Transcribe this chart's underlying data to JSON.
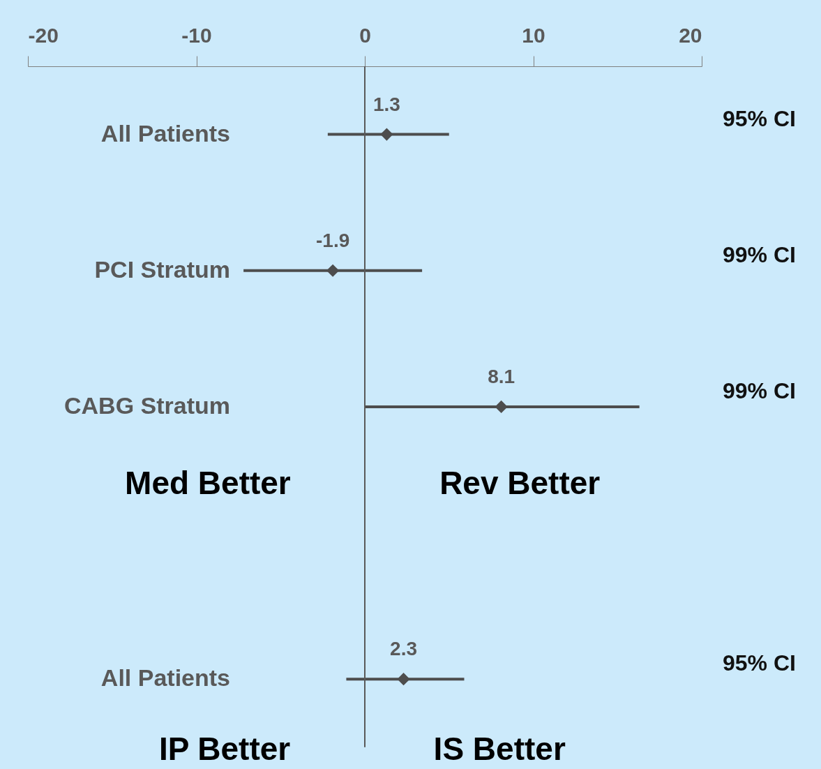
{
  "chart_data": {
    "type": "scatter",
    "orientation": "horizontal",
    "categories": [
      "All Patients",
      "PCI Stratum",
      "CABG Stratum",
      null,
      "All Patients"
    ],
    "y2_categories": [
      "95% CI",
      "99% CI",
      "99% CI",
      null,
      "95% CI"
    ],
    "values": [
      1.3,
      -1.9,
      8.1,
      null,
      2.3
    ],
    "errors": [
      [
        -2.2,
        5.0
      ],
      [
        -7.2,
        3.4
      ],
      [
        0.0,
        16.3
      ],
      null,
      [
        -1.1,
        5.9
      ]
    ],
    "data_labels": true,
    "color": "#4d4d4d",
    "marker": "diamond",
    "xlim": [
      -20,
      20
    ],
    "xticks": [
      -20,
      -10,
      0,
      10,
      20
    ],
    "ref_lines": [
      {
        "axis": "x",
        "value": 0,
        "color": "#595959"
      }
    ],
    "annotations": [
      "Med Better",
      "Rev Better",
      "IP Better",
      "IS Better"
    ],
    "grid": false
  }
}
